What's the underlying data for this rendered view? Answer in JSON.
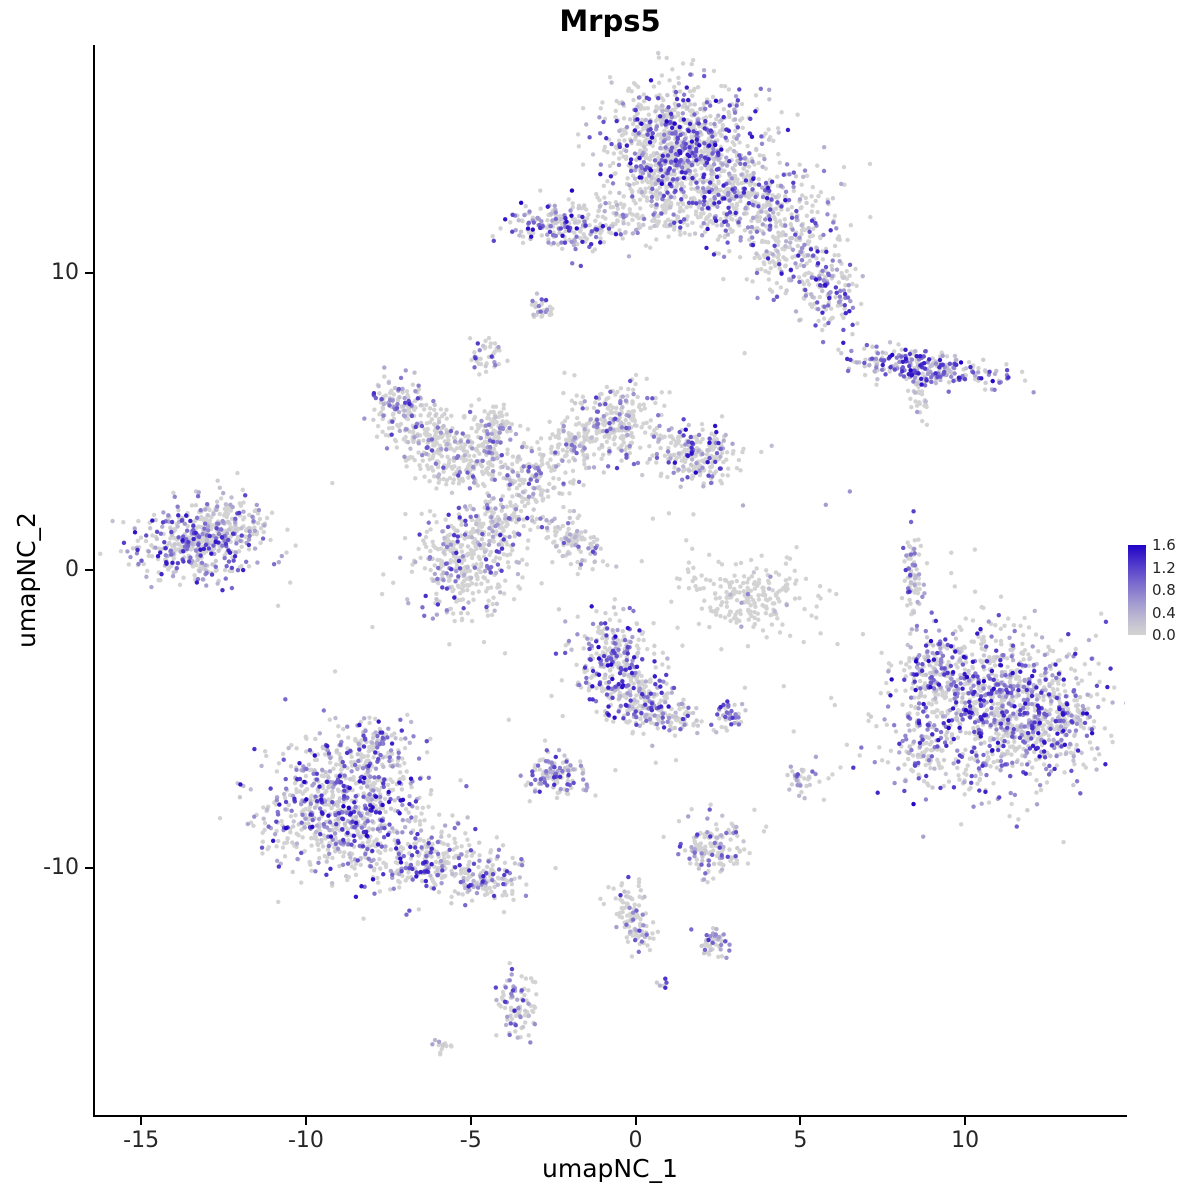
{
  "chart_data": {
    "type": "scatter",
    "title": "Mrps5",
    "xlabel": "umapNC_1",
    "ylabel": "umapNC_2",
    "x_domain": [
      -16.4,
      14.85
    ],
    "y_domain": [
      -18.3,
      17.65
    ],
    "x_ticks": [
      -15,
      -10,
      -5,
      0,
      5,
      10
    ],
    "y_ticks": [
      -10,
      0,
      10
    ],
    "grid": false,
    "legend": {
      "position": "right",
      "ticks": [
        "1.6",
        "1.2",
        "0.8",
        "0.4",
        "0.0"
      ],
      "low_color": "#D3D3D3",
      "high_color": "#2102C8",
      "max": 1.6
    },
    "point_radius": 2.2,
    "seed": 42,
    "clusters": [
      {
        "x": 1.3,
        "y": 14.4,
        "sx": 1.15,
        "sy": 1.0,
        "n": 850,
        "f": 0.45,
        "m": 1.6
      },
      {
        "x": 2.9,
        "y": 12.6,
        "sx": 1.2,
        "sy": 0.8,
        "n": 450,
        "f": 0.4,
        "m": 1.5
      },
      {
        "x": 4.6,
        "y": 11.0,
        "sx": 0.8,
        "sy": 0.8,
        "n": 230,
        "f": 0.4,
        "m": 1.5
      },
      {
        "x": 5.8,
        "y": 9.5,
        "sx": 0.45,
        "sy": 0.7,
        "n": 140,
        "f": 0.55,
        "m": 1.5
      },
      {
        "x": -2.3,
        "y": 11.5,
        "sx": 0.85,
        "sy": 0.4,
        "n": 170,
        "f": 0.5,
        "m": 1.6
      },
      {
        "x": -0.4,
        "y": 11.8,
        "sx": 1.1,
        "sy": 0.35,
        "n": 130,
        "f": 0.35,
        "m": 1.2
      },
      {
        "x": 0.6,
        "y": 12.9,
        "sx": 0.5,
        "sy": 0.5,
        "n": 80,
        "f": 0.3,
        "m": 1.2
      },
      {
        "x": -2.8,
        "y": 8.8,
        "sx": 0.18,
        "sy": 0.22,
        "n": 28,
        "f": 0.5,
        "m": 1.3
      },
      {
        "x": -4.5,
        "y": 7.2,
        "sx": 0.22,
        "sy": 0.3,
        "n": 40,
        "f": 0.4,
        "m": 1.3
      },
      {
        "x": 8.8,
        "y": 6.8,
        "sx": 1.15,
        "sy": 0.28,
        "n": 270,
        "f": 0.7,
        "m": 1.6,
        "rot": -8
      },
      {
        "x": 8.6,
        "y": 5.9,
        "sx": 0.15,
        "sy": 0.45,
        "n": 35,
        "f": 0.2,
        "m": 1.0
      },
      {
        "x": -7.2,
        "y": 5.5,
        "sx": 0.45,
        "sy": 0.55,
        "n": 130,
        "f": 0.5,
        "m": 1.4
      },
      {
        "x": -6.3,
        "y": 4.5,
        "sx": 0.5,
        "sy": 0.5,
        "n": 120,
        "f": 0.35,
        "m": 1.3
      },
      {
        "x": -5.2,
        "y": 3.6,
        "sx": 0.65,
        "sy": 0.5,
        "n": 190,
        "f": 0.25,
        "m": 1.2
      },
      {
        "x": -4.3,
        "y": 4.9,
        "sx": 0.4,
        "sy": 0.4,
        "n": 90,
        "f": 0.3,
        "m": 1.2
      },
      {
        "x": -3.2,
        "y": 3.1,
        "sx": 0.55,
        "sy": 0.6,
        "n": 150,
        "f": 0.25,
        "m": 1.2
      },
      {
        "x": -2.0,
        "y": 4.3,
        "sx": 0.5,
        "sy": 0.4,
        "n": 80,
        "f": 0.25,
        "m": 1.1
      },
      {
        "x": -0.7,
        "y": 5.0,
        "sx": 0.75,
        "sy": 0.6,
        "n": 260,
        "f": 0.3,
        "m": 1.3
      },
      {
        "x": 1.8,
        "y": 3.9,
        "sx": 0.65,
        "sy": 0.55,
        "n": 230,
        "f": 0.35,
        "m": 1.6
      },
      {
        "x": -13.3,
        "y": 0.9,
        "sx": 0.95,
        "sy": 0.6,
        "n": 430,
        "f": 0.5,
        "m": 1.5
      },
      {
        "x": -12.4,
        "y": 1.6,
        "sx": 0.6,
        "sy": 0.45,
        "n": 110,
        "f": 0.35,
        "m": 1.2
      },
      {
        "x": -5.2,
        "y": 0.2,
        "sx": 0.8,
        "sy": 0.95,
        "n": 360,
        "f": 0.3,
        "m": 1.4
      },
      {
        "x": -4.1,
        "y": 1.6,
        "sx": 0.45,
        "sy": 0.45,
        "n": 100,
        "f": 0.3,
        "m": 1.2
      },
      {
        "x": -2.0,
        "y": 1.0,
        "sx": 0.75,
        "sy": 0.35,
        "n": 110,
        "f": 0.3,
        "m": 1.2,
        "rot": -40
      },
      {
        "x": 3.4,
        "y": -0.9,
        "sx": 0.95,
        "sy": 0.6,
        "n": 210,
        "f": 0.08,
        "m": 0.8
      },
      {
        "x": 8.4,
        "y": 0.0,
        "sx": 0.14,
        "sy": 0.75,
        "n": 75,
        "f": 0.45,
        "m": 1.4
      },
      {
        "x": 10.9,
        "y": -4.6,
        "sx": 1.5,
        "sy": 1.4,
        "n": 1050,
        "f": 0.55,
        "m": 1.6
      },
      {
        "x": 9.2,
        "y": -3.3,
        "sx": 0.6,
        "sy": 0.6,
        "n": 140,
        "f": 0.5,
        "m": 1.5
      },
      {
        "x": 12.7,
        "y": -5.3,
        "sx": 0.6,
        "sy": 0.8,
        "n": 180,
        "f": 0.5,
        "m": 1.5
      },
      {
        "x": 8.6,
        "y": -6.2,
        "sx": 0.4,
        "sy": 0.5,
        "n": 70,
        "f": 0.4,
        "m": 1.3
      },
      {
        "x": -0.6,
        "y": -3.1,
        "sx": 0.65,
        "sy": 0.75,
        "n": 320,
        "f": 0.5,
        "m": 1.6
      },
      {
        "x": 0.3,
        "y": -4.6,
        "sx": 0.5,
        "sy": 0.5,
        "n": 150,
        "f": 0.45,
        "m": 1.5
      },
      {
        "x": 1.3,
        "y": -5.0,
        "sx": 0.35,
        "sy": 0.3,
        "n": 50,
        "f": 0.4,
        "m": 1.3
      },
      {
        "x": 2.8,
        "y": -4.9,
        "sx": 0.25,
        "sy": 0.25,
        "n": 40,
        "f": 0.7,
        "m": 1.4
      },
      {
        "x": -2.4,
        "y": -6.9,
        "sx": 0.5,
        "sy": 0.38,
        "n": 120,
        "f": 0.6,
        "m": 1.4
      },
      {
        "x": -8.8,
        "y": -8.0,
        "sx": 1.25,
        "sy": 1.15,
        "n": 850,
        "f": 0.55,
        "m": 1.6
      },
      {
        "x": -7.9,
        "y": -5.9,
        "sx": 0.5,
        "sy": 0.4,
        "n": 90,
        "f": 0.5,
        "m": 1.4
      },
      {
        "x": -6.1,
        "y": -9.7,
        "sx": 0.8,
        "sy": 0.55,
        "n": 230,
        "f": 0.45,
        "m": 1.5
      },
      {
        "x": -4.4,
        "y": -10.4,
        "sx": 0.45,
        "sy": 0.4,
        "n": 110,
        "f": 0.45,
        "m": 1.5
      },
      {
        "x": 5.0,
        "y": -7.1,
        "sx": 0.25,
        "sy": 0.3,
        "n": 35,
        "f": 0.5,
        "m": 1.3
      },
      {
        "x": 2.3,
        "y": -9.3,
        "sx": 0.5,
        "sy": 0.55,
        "n": 140,
        "f": 0.4,
        "m": 1.4
      },
      {
        "x": -0.2,
        "y": -11.3,
        "sx": 0.3,
        "sy": 0.35,
        "n": 55,
        "f": 0.35,
        "m": 1.3
      },
      {
        "x": 0.1,
        "y": -12.2,
        "sx": 0.3,
        "sy": 0.3,
        "n": 45,
        "f": 0.35,
        "m": 1.3
      },
      {
        "x": 2.4,
        "y": -12.5,
        "sx": 0.25,
        "sy": 0.3,
        "n": 45,
        "f": 0.6,
        "m": 1.4
      },
      {
        "x": 0.8,
        "y": -13.9,
        "sx": 0.1,
        "sy": 0.1,
        "n": 6,
        "f": 0.9,
        "m": 1.6
      },
      {
        "x": -3.6,
        "y": -14.6,
        "sx": 0.3,
        "sy": 0.65,
        "n": 90,
        "f": 0.5,
        "m": 1.4
      },
      {
        "x": -5.9,
        "y": -16.0,
        "sx": 0.18,
        "sy": 0.15,
        "n": 16,
        "f": 0.15,
        "m": 0.8
      },
      {
        "x": -1.0,
        "y": -1.0,
        "sx": 5.5,
        "sy": 4.5,
        "n": 80,
        "f": 0.15,
        "m": 1.0
      }
    ]
  }
}
